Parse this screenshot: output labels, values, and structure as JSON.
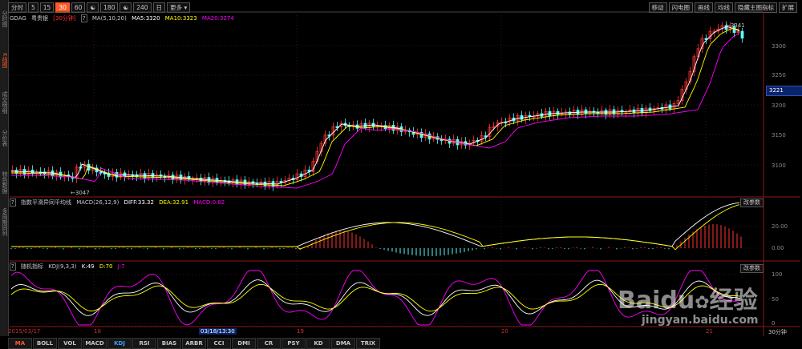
{
  "left_nav": [
    {
      "label": "分时图",
      "active": false
    },
    {
      "label": "K线图",
      "active": true
    },
    {
      "label": "成交明细",
      "active": false
    },
    {
      "label": "分价表",
      "active": false
    },
    {
      "label": "特色数据",
      "active": false
    },
    {
      "label": "多周期同列",
      "active": false
    }
  ],
  "toolbar": {
    "periods": [
      "分时",
      "5",
      "15",
      "30",
      "60",
      "☯",
      "180",
      "☯",
      "240",
      "日"
    ],
    "active_index": 3,
    "more_label": "更多",
    "right_buttons": [
      "移动",
      "闪电图",
      "画线",
      "均线",
      "隐藏主图指标",
      "扩展"
    ]
  },
  "main_info": {
    "code": "GDAG",
    "name": "粤贵银",
    "period": "[30分钟]",
    "ma_label": "MA(5,10,20)",
    "ma5": "MA5:3320",
    "ma10": "MA10:3323",
    "ma20": "MA20:3274"
  },
  "price_axis": [
    "3300",
    "3250",
    "3200",
    "3150",
    "3100"
  ],
  "price_tag": "3221",
  "annotations": {
    "high": "3341",
    "low": "3047"
  },
  "macd_info": {
    "name": "指数平滑异同平均线",
    "params": "MACD(26,12,9)",
    "diff": "DIFF:33.32",
    "dea": "DEA:32.91",
    "macd": "MACD:0.82",
    "button": "改参数"
  },
  "macd_axis": [
    "20.00",
    "0.00"
  ],
  "kdj_info": {
    "name": "随机指标",
    "params": "KDJ(9,3,3)",
    "k": "K:49",
    "d": "D:70",
    "j": "J:7",
    "button": "改参数"
  },
  "kdj_axis": [
    "100",
    "50",
    "0"
  ],
  "dates": [
    {
      "label": "2015/03/17",
      "highlight": false
    },
    {
      "label": "18",
      "highlight": false
    },
    {
      "label": "03/18/13:30",
      "highlight": true
    },
    {
      "label": "19",
      "highlight": false
    },
    {
      "label": "20",
      "highlight": false
    },
    {
      "label": "21",
      "highlight": false
    }
  ],
  "period_label": "30分钟",
  "bottom_tabs": [
    "MA",
    "BOLL",
    "VOL",
    "MACD",
    "KDJ",
    "RSI",
    "BIAS",
    "ARBR",
    "CCI",
    "DMI",
    "CR",
    "PSY",
    "KD",
    "DMA",
    "TRIX"
  ],
  "watermark": {
    "brand": "Baidu",
    "brand_cn": "经验",
    "url": "jingyan.baidu.com"
  },
  "colors": {
    "up": "#ff3232",
    "down": "#54fcfc",
    "ma5": "#ffffff",
    "ma10": "#ffff00",
    "ma20": "#ff00ff",
    "accent": "#ff5a28"
  }
}
